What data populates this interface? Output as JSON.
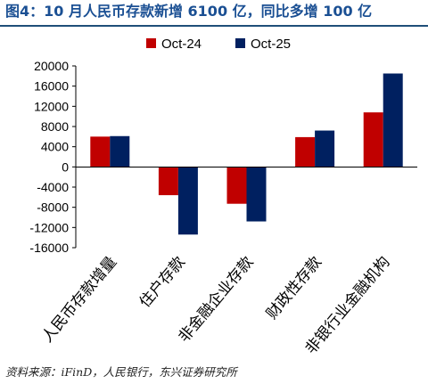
{
  "figure": {
    "title": "图4：10 月人民币存款新增 6100 亿，同比多增 100 亿",
    "source": "资料来源：iFinD，人民银行，东兴证券研究所"
  },
  "chart_data": {
    "type": "bar",
    "categories": [
      "人民币存款增量",
      "住户存款",
      "非金融企业存款",
      "财政性存款",
      "非银行业金融机构"
    ],
    "series": [
      {
        "name": "Oct-24",
        "color": "#c00000",
        "values": [
          6000,
          -5600,
          -7300,
          5900,
          10800
        ]
      },
      {
        "name": "Oct-25",
        "color": "#002060",
        "values": [
          6100,
          -13400,
          -10800,
          7200,
          18500
        ]
      }
    ],
    "ylim": [
      -16000,
      20000
    ],
    "yticks": [
      20000,
      16000,
      12000,
      8000,
      4000,
      0,
      -4000,
      -8000,
      -12000,
      -16000
    ],
    "ytick_labels": [
      "20000",
      "16000",
      "12000",
      "8000",
      "4000",
      "0",
      "-4000",
      "-8000",
      "-12000",
      "-16000"
    ],
    "grid": false,
    "legend_position": "top-center"
  }
}
